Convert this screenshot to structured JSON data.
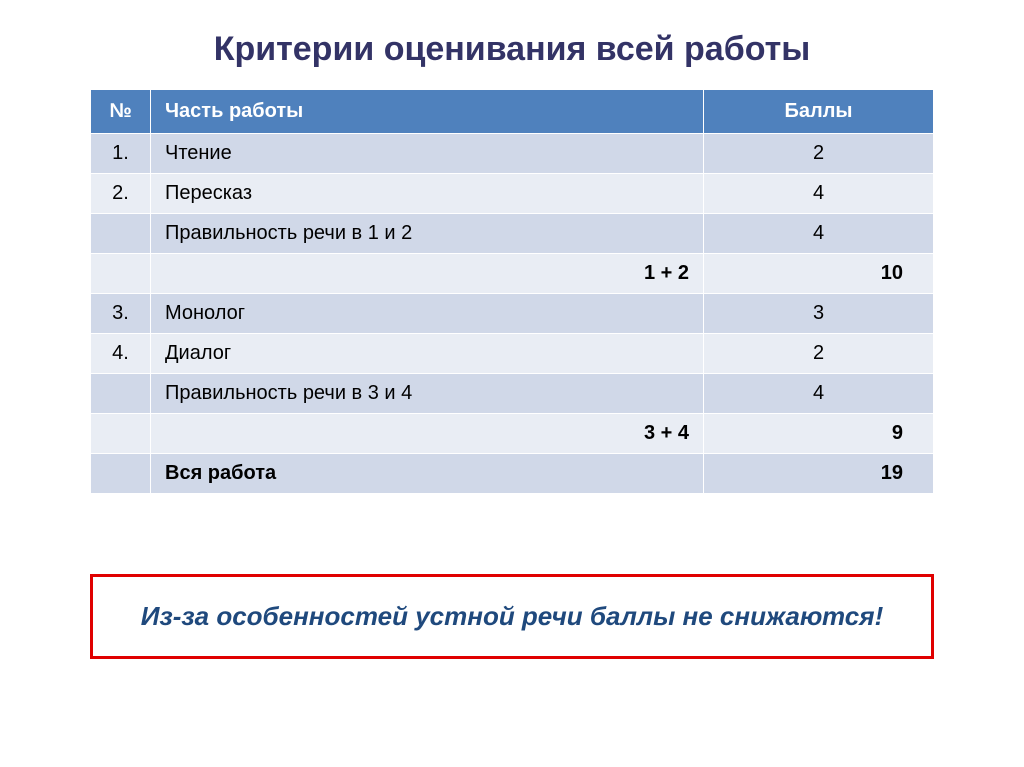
{
  "title": "Критерии оценивания всей работы",
  "columns": {
    "num": "№",
    "part": "Часть работы",
    "score": "Баллы"
  },
  "rows": [
    {
      "num": "1.",
      "part": "Чтение",
      "score": "2",
      "parity": "odd",
      "type": "normal"
    },
    {
      "num": "2.",
      "part": "Пересказ",
      "score": "4",
      "parity": "even",
      "type": "normal"
    },
    {
      "num": "",
      "part": "Правильность речи в 1 и 2",
      "score": "4",
      "parity": "odd",
      "type": "normal"
    },
    {
      "num": "",
      "part": "1 + 2",
      "score": "10",
      "parity": "even",
      "type": "subtotal"
    },
    {
      "num": "3.",
      "part": "Монолог",
      "score": "3",
      "parity": "odd",
      "type": "normal"
    },
    {
      "num": "4.",
      "part": "Диалог",
      "score": "2",
      "parity": "even",
      "type": "normal"
    },
    {
      "num": "",
      "part": "Правильность речи в 3 и 4",
      "score": "4",
      "parity": "odd",
      "type": "normal"
    },
    {
      "num": "",
      "part": "3 + 4",
      "score": "9",
      "parity": "even",
      "type": "subtotal"
    },
    {
      "num": "",
      "part": "Вся работа",
      "score": "19",
      "parity": "odd",
      "type": "total"
    }
  ],
  "callout": "Из-за особенностей устной речи баллы не снижаются!"
}
